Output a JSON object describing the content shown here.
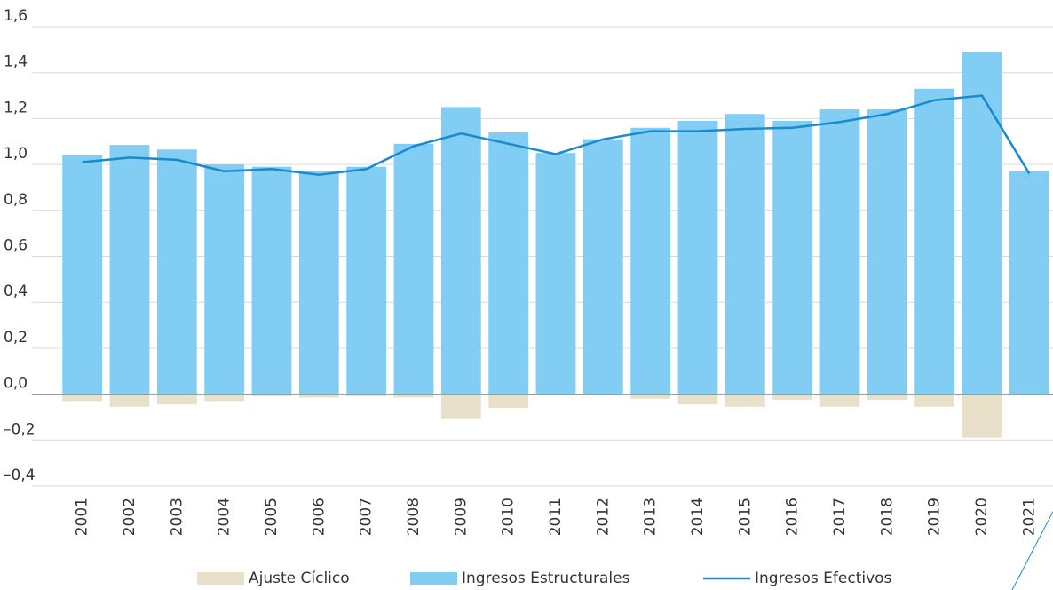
{
  "chart_data": {
    "type": "bar",
    "categories": [
      "2001",
      "2002",
      "2003",
      "2004",
      "2005",
      "2006",
      "2007",
      "2008",
      "2009",
      "2010",
      "2011",
      "2012",
      "2013",
      "2014",
      "2015",
      "2016",
      "2017",
      "2018",
      "2019",
      "2020",
      "2021"
    ],
    "series": [
      {
        "name": "Ajuste Cíclico",
        "color": "#e8e0c8",
        "type": "bar",
        "values": [
          -0.03,
          -0.055,
          -0.045,
          -0.03,
          -0.01,
          -0.015,
          -0.01,
          -0.015,
          -0.105,
          -0.06,
          0,
          0,
          -0.02,
          -0.045,
          -0.055,
          -0.025,
          -0.055,
          -0.025,
          -0.055,
          -0.19,
          -0.005
        ]
      },
      {
        "name": "Ingresos Estructurales",
        "color": "#81cdf4",
        "type": "bar",
        "values": [
          1.04,
          1.085,
          1.065,
          1.0,
          0.99,
          0.97,
          0.99,
          1.09,
          1.25,
          1.14,
          1.05,
          1.11,
          1.16,
          1.19,
          1.22,
          1.19,
          1.24,
          1.24,
          1.33,
          1.49,
          0.97
        ]
      },
      {
        "name": "Ingresos Efectivos",
        "color": "#1a8acb",
        "type": "line",
        "values": [
          1.01,
          1.03,
          1.02,
          0.97,
          0.98,
          0.955,
          0.98,
          1.08,
          1.135,
          1.09,
          1.045,
          1.11,
          1.145,
          1.145,
          1.155,
          1.16,
          1.185,
          1.22,
          1.28,
          1.3,
          0.96
        ]
      }
    ],
    "ylim": [
      -0.4,
      1.6
    ],
    "yticks": [
      {
        "value": -0.4,
        "label": "–0,4"
      },
      {
        "value": -0.2,
        "label": "–0,2"
      },
      {
        "value": 0,
        "label": "0,0"
      },
      {
        "value": 0.2,
        "label": "0,2"
      },
      {
        "value": 0.4,
        "label": "0,4"
      },
      {
        "value": 0.6,
        "label": "0,6"
      },
      {
        "value": 0.8,
        "label": "0,8"
      },
      {
        "value": 1.0,
        "label": "1,0"
      },
      {
        "value": 1.2,
        "label": "1,2"
      },
      {
        "value": 1.4,
        "label": "1,4"
      },
      {
        "value": 1.6,
        "label": "1,6"
      }
    ],
    "grid": true,
    "legend": "bottom"
  }
}
